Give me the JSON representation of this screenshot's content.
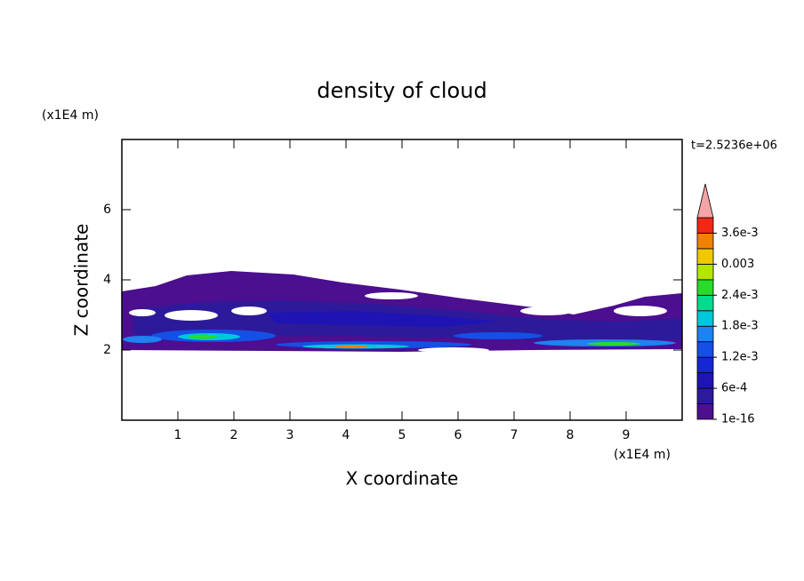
{
  "chart_data": {
    "type": "contour",
    "title": "density of cloud",
    "xlabel": "X coordinate",
    "ylabel": "Z coordinate",
    "x_unit": "(x1E4 m)",
    "y_unit": "(x1E4 m)",
    "annotation": "t=2.5236e+06",
    "xlim": [
      0,
      10
    ],
    "ylim": [
      0,
      8
    ],
    "xticks": [
      1,
      2,
      3,
      4,
      5,
      6,
      7,
      8,
      9
    ],
    "yticks": [
      2,
      4,
      6
    ],
    "colorbar": {
      "lim": [
        1e-16,
        0.0039
      ],
      "ticks": [
        {
          "value": 1e-16,
          "label": "1e-16"
        },
        {
          "value": 0.0006,
          "label": "6e-4"
        },
        {
          "value": 0.0012,
          "label": "1.2e-3"
        },
        {
          "value": 0.0018,
          "label": "1.8e-3"
        },
        {
          "value": 0.0024,
          "label": "2.4e-3"
        },
        0.003,
        {
          "value": 0.0036,
          "label": "3.6e-3"
        }
      ],
      "colors": [
        "#4b0f8f",
        "#2d1a9a",
        "#1e14b4",
        "#1428d2",
        "#1450e6",
        "#1e82f0",
        "#00c8dc",
        "#00dc8c",
        "#28dc28",
        "#b4e600",
        "#f0c800",
        "#f08200",
        "#f02814"
      ],
      "extend_color": "#f4a4a4"
    }
  }
}
